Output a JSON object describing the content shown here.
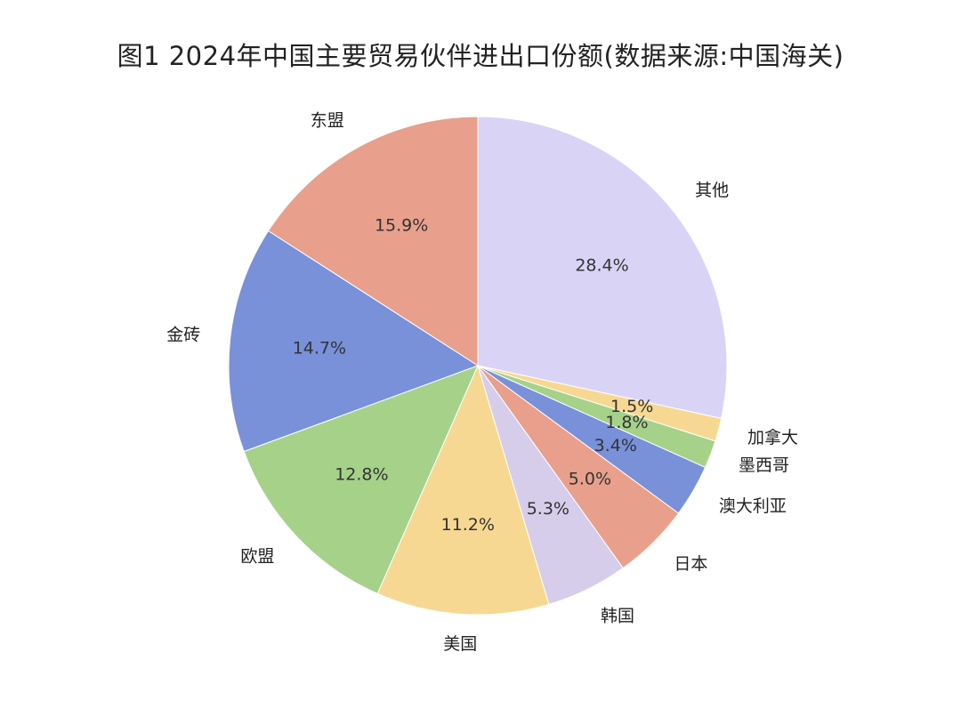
{
  "chart_data": {
    "type": "pie",
    "title": "图1 2024年中国主要贸易伙伴进出口份额(数据来源:中国海关)",
    "slices": [
      {
        "label": "其他",
        "value": 28.4,
        "pct_label": "28.4%",
        "color": "#d9d4f6"
      },
      {
        "label": "加拿大",
        "value": 1.5,
        "pct_label": "1.5%",
        "color": "#f7d892"
      },
      {
        "label": "墨西哥",
        "value": 1.8,
        "pct_label": "1.8%",
        "color": "#a6d189"
      },
      {
        "label": "澳大利亚",
        "value": 3.4,
        "pct_label": "3.4%",
        "color": "#7891d9"
      },
      {
        "label": "日本",
        "value": 5.0,
        "pct_label": "5.0%",
        "color": "#e8a08c"
      },
      {
        "label": "韩国",
        "value": 5.3,
        "pct_label": "5.3%",
        "color": "#d6cdea"
      },
      {
        "label": "美国",
        "value": 11.2,
        "pct_label": "11.2%",
        "color": "#f7d892"
      },
      {
        "label": "欧盟",
        "value": 12.8,
        "pct_label": "12.8%",
        "color": "#a6d189"
      },
      {
        "label": "金砖",
        "value": 14.7,
        "pct_label": "14.7%",
        "color": "#7891d9"
      },
      {
        "label": "东盟",
        "value": 15.9,
        "pct_label": "15.9%",
        "color": "#e8a08c"
      }
    ],
    "start": "top",
    "direction": "clockwise"
  }
}
